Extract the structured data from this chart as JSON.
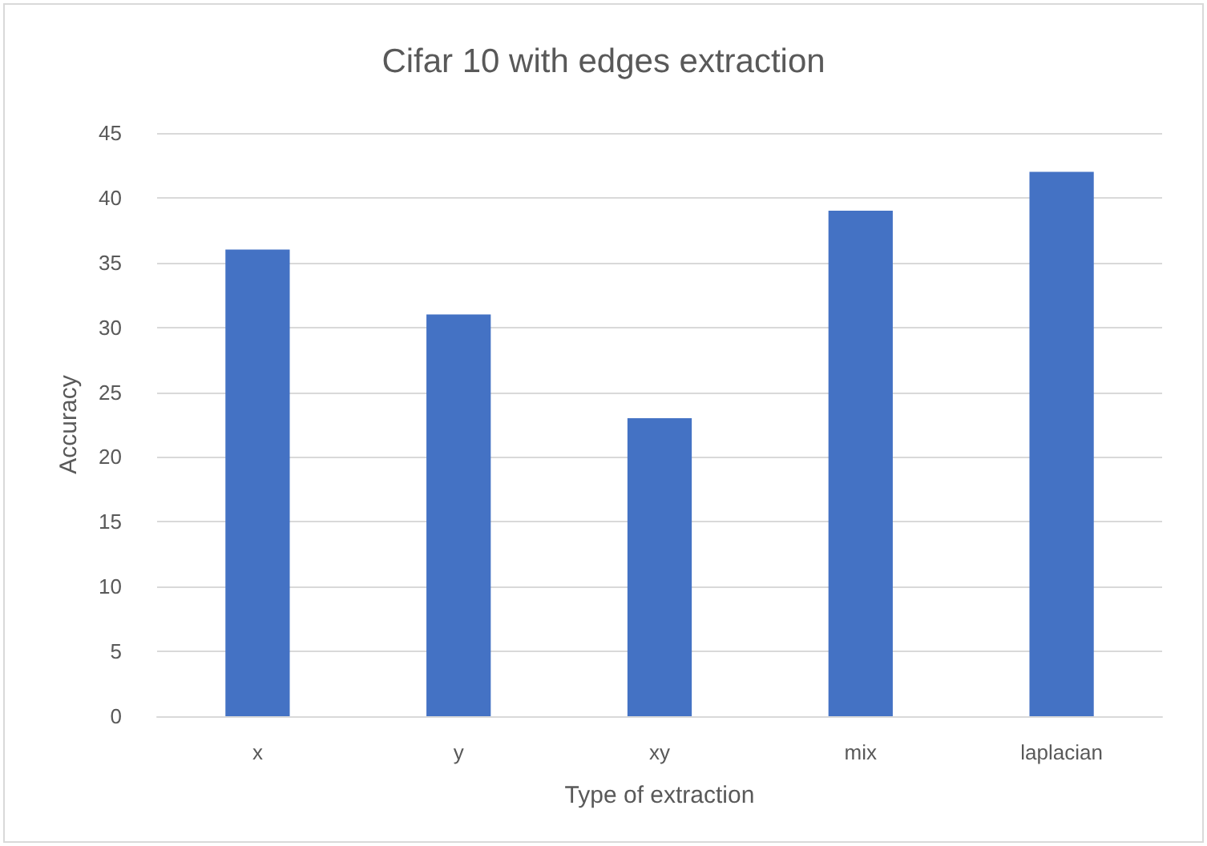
{
  "chart_data": {
    "type": "bar",
    "title": "Cifar 10 with edges extraction",
    "xlabel": "Type of extraction",
    "ylabel": "Accuracy",
    "categories": [
      "x",
      "y",
      "xy",
      "mix",
      "laplacian"
    ],
    "values": [
      36,
      31,
      23,
      39,
      42
    ],
    "color": "#4472c4",
    "ylim": [
      0,
      45
    ],
    "yticks": [
      0,
      5,
      10,
      15,
      20,
      25,
      30,
      35,
      40,
      45
    ],
    "grid": "y"
  }
}
